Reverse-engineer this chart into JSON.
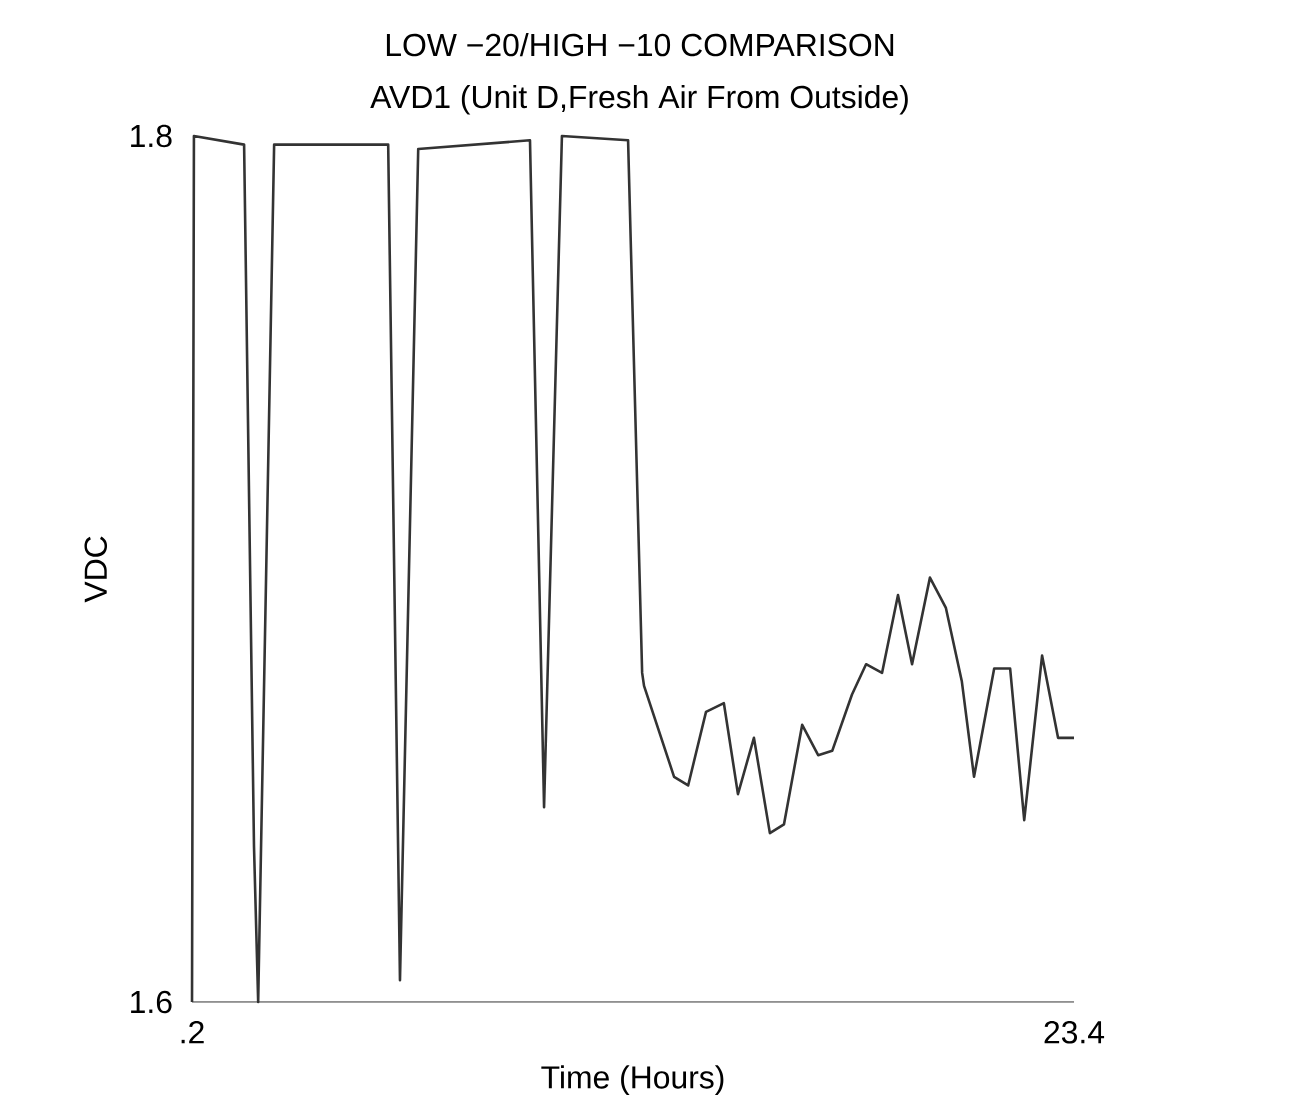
{
  "chart_data": {
    "type": "line",
    "title": "LOW −20/HIGH −10 COMPARISON",
    "subtitle": "AVD1 (Unit D,Fresh Air From Outside)",
    "xlabel": "Time (Hours)",
    "ylabel": "VDC",
    "xlim": [
      0.2,
      23.4
    ],
    "ylim": [
      1.6,
      1.8
    ],
    "xticks": [
      {
        "value": 0.2,
        "label": ".2"
      },
      23.4
    ],
    "yticks": [
      1.6,
      1.8
    ],
    "grid": false,
    "marker": "none",
    "line_style": "solid",
    "series": [
      {
        "color": "#333333",
        "x": [
          0.2,
          0.25,
          1.57,
          1.83,
          1.94,
          2.36,
          5.36,
          5.67,
          6.15,
          9.09,
          9.46,
          9.93,
          11.67,
          12.04,
          12.09,
          12.88,
          13.25,
          13.72,
          14.19,
          14.56,
          14.98,
          15.4,
          15.77,
          16.25,
          16.67,
          17.04,
          17.56,
          17.93,
          18.35,
          18.77,
          19.14,
          19.61,
          20.03,
          20.45,
          20.77,
          21.3,
          21.72,
          22.09,
          22.56,
          22.98,
          23.4
        ],
        "values": [
          1.6,
          1.8,
          1.798,
          1.636,
          1.6,
          1.798,
          1.798,
          1.605,
          1.797,
          1.799,
          1.645,
          1.8,
          1.799,
          1.676,
          1.673,
          1.652,
          1.65,
          1.667,
          1.669,
          1.648,
          1.661,
          1.639,
          1.641,
          1.664,
          1.657,
          1.658,
          1.671,
          1.678,
          1.676,
          1.694,
          1.678,
          1.698,
          1.691,
          1.674,
          1.652,
          1.677,
          1.677,
          1.642,
          1.68,
          1.661,
          1.661
        ]
      }
    ]
  }
}
